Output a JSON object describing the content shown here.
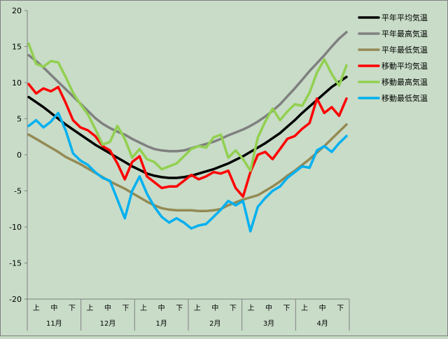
{
  "chart_data": {
    "type": "line",
    "title": "",
    "xlabel": "",
    "ylabel": "",
    "ylim": [
      -20,
      20
    ],
    "yticks": [
      -20,
      -15,
      -10,
      -5,
      0,
      5,
      10,
      15,
      20
    ],
    "months": [
      "11月",
      "12月",
      "1月",
      "2月",
      "3月",
      "4月"
    ],
    "thirds": [
      "上",
      "中",
      "下"
    ],
    "grid": false,
    "legend_position": "right",
    "plot_background": "#c8dcc8",
    "series": [
      {
        "name": "平年平均気温",
        "color": "#000000",
        "y": [
          8.0,
          7.3,
          6.6,
          5.8,
          5.0,
          4.2,
          3.5,
          2.8,
          2.1,
          1.4,
          0.8,
          0.2,
          -0.4,
          -1.0,
          -1.6,
          -2.1,
          -2.6,
          -2.9,
          -3.1,
          -3.2,
          -3.2,
          -3.1,
          -2.9,
          -2.6,
          -2.3,
          -2.0,
          -1.6,
          -1.2,
          -0.7,
          -0.2,
          0.4,
          1.0,
          1.6,
          2.3,
          3.0,
          3.9,
          4.8,
          5.8,
          6.7,
          7.6,
          8.5,
          9.4,
          10.1,
          10.8
        ]
      },
      {
        "name": "平年最高気温",
        "color": "#808080",
        "y": [
          13.8,
          13.0,
          12.1,
          11.1,
          10.1,
          9.1,
          8.1,
          7.1,
          6.1,
          5.1,
          4.3,
          3.7,
          3.2,
          2.8,
          2.2,
          1.7,
          1.2,
          0.8,
          0.6,
          0.5,
          0.5,
          0.6,
          0.9,
          1.2,
          1.5,
          1.8,
          2.2,
          2.7,
          3.1,
          3.5,
          4.0,
          4.6,
          5.3,
          6.1,
          7.0,
          8.1,
          9.2,
          10.4,
          11.6,
          12.7,
          13.8,
          15.0,
          16.1,
          17.0
        ]
      },
      {
        "name": "平年最低気温",
        "color": "#948a54",
        "y": [
          2.8,
          2.2,
          1.6,
          1.0,
          0.4,
          -0.3,
          -0.8,
          -1.3,
          -1.9,
          -2.5,
          -3.1,
          -3.7,
          -4.2,
          -4.7,
          -5.3,
          -5.9,
          -6.5,
          -7.0,
          -7.4,
          -7.6,
          -7.7,
          -7.7,
          -7.7,
          -7.8,
          -7.8,
          -7.7,
          -7.5,
          -7.0,
          -6.6,
          -6.2,
          -5.9,
          -5.6,
          -5.0,
          -4.4,
          -3.7,
          -2.9,
          -2.2,
          -1.4,
          -0.6,
          0.3,
          1.2,
          2.2,
          3.2,
          4.2
        ]
      },
      {
        "name": "移動平均気温",
        "color": "#ff0000",
        "y": [
          9.8,
          8.5,
          9.2,
          8.8,
          9.4,
          7.2,
          4.8,
          3.8,
          3.4,
          2.6,
          1.2,
          0.6,
          -1.2,
          -3.4,
          -1.0,
          -0.2,
          -3.0,
          -3.8,
          -4.6,
          -4.4,
          -4.4,
          -3.6,
          -2.8,
          -3.4,
          -3.0,
          -2.4,
          -2.6,
          -2.2,
          -4.6,
          -5.8,
          -2.4,
          0.0,
          0.4,
          -0.6,
          0.8,
          2.2,
          2.6,
          3.6,
          4.4,
          7.8,
          5.8,
          6.6,
          5.4,
          7.8
        ]
      },
      {
        "name": "移動最高気温",
        "color": "#92d050",
        "y": [
          15.4,
          12.6,
          12.2,
          13.0,
          12.8,
          10.8,
          8.6,
          7.0,
          5.6,
          3.6,
          1.4,
          1.8,
          4.0,
          2.2,
          -0.4,
          0.8,
          -0.6,
          -1.0,
          -2.0,
          -1.6,
          -1.2,
          -0.2,
          0.8,
          1.2,
          1.0,
          2.4,
          2.8,
          -0.4,
          0.6,
          -0.6,
          -2.2,
          2.4,
          4.6,
          6.4,
          4.8,
          6.0,
          7.0,
          6.8,
          8.6,
          11.4,
          13.2,
          11.2,
          9.6,
          12.4
        ]
      },
      {
        "name": "移動最低気温",
        "color": "#00b0f0",
        "y": [
          4.0,
          4.8,
          3.8,
          4.6,
          5.8,
          3.4,
          0.2,
          -0.8,
          -1.4,
          -2.4,
          -3.2,
          -3.6,
          -6.2,
          -8.8,
          -5.0,
          -3.0,
          -5.4,
          -7.2,
          -8.6,
          -9.4,
          -8.8,
          -9.4,
          -10.2,
          -9.8,
          -9.6,
          -8.6,
          -7.6,
          -6.4,
          -7.0,
          -6.4,
          -10.6,
          -7.2,
          -6.0,
          -5.0,
          -4.4,
          -3.2,
          -2.4,
          -1.6,
          -1.8,
          0.6,
          1.2,
          0.4,
          1.6,
          2.6
        ]
      }
    ]
  }
}
